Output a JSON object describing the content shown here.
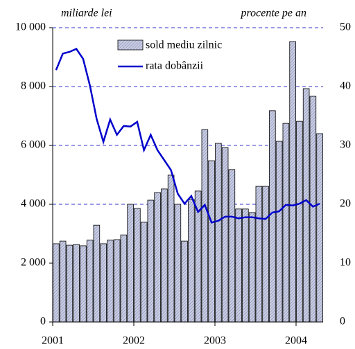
{
  "chart_data": {
    "type": "bar_line",
    "y_label": "miliarde lei",
    "y2_label": "procente pe an",
    "categories": [
      "2001",
      null,
      null,
      null,
      null,
      null,
      null,
      null,
      null,
      null,
      null,
      null,
      "2002",
      null,
      null,
      null,
      null,
      null,
      null,
      null,
      null,
      null,
      null,
      null,
      "2003",
      null,
      null,
      null,
      null,
      null,
      null,
      null,
      null,
      null,
      null,
      null,
      "2004",
      null,
      null,
      null
    ],
    "series": [
      {
        "name": "sold mediu zilnic",
        "color": "#c9cde3",
        "values": [
          2660,
          2750,
          2610,
          2630,
          2590,
          2780,
          3290,
          2660,
          2780,
          2800,
          2960,
          4000,
          3860,
          3390,
          4140,
          4400,
          4520,
          4990,
          4000,
          2750,
          4160,
          4450,
          6540,
          5480,
          6070,
          5930,
          5180,
          3840,
          3840,
          3720,
          4610,
          4610,
          7180,
          6140,
          6750,
          9530,
          6820,
          7930,
          7670,
          6400
        ]
      },
      {
        "name": "rata dobânzii",
        "color": "#0000cc",
        "axis": "y2",
        "values": [
          42.8,
          45.6,
          45.9,
          46.4,
          44.7,
          40.2,
          34.5,
          30.6,
          34.4,
          31.8,
          33.3,
          33.2,
          34.0,
          29.2,
          31.8,
          29.2,
          27.5,
          25.8,
          21.8,
          20.1,
          21.4,
          18.7,
          19.9,
          16.9,
          17.2,
          17.9,
          17.9,
          17.6,
          17.8,
          17.8,
          17.6,
          17.5,
          18.6,
          18.8,
          19.9,
          19.8,
          20.1,
          20.7,
          19.6,
          20.1
        ]
      }
    ],
    "ylim": [
      0,
      10000
    ],
    "yticks": [
      0,
      {
        "value": 2000,
        "label": "2 000"
      },
      {
        "value": 4000,
        "label": "4 000"
      },
      {
        "value": 6000,
        "label": "6 000"
      },
      {
        "value": 8000,
        "label": "8 000"
      },
      {
        "value": 10000,
        "label": "10 000"
      }
    ],
    "y2lim": [
      0,
      50
    ],
    "y2ticks": [
      0,
      10,
      20,
      30,
      40,
      50
    ],
    "grid": true
  }
}
